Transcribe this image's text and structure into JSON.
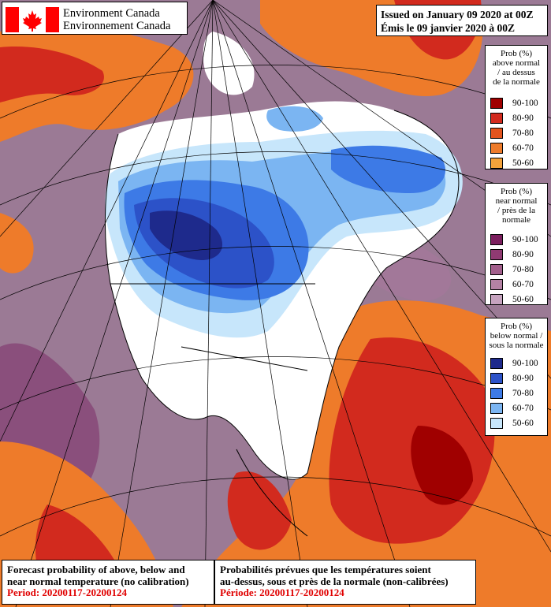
{
  "header": {
    "agency_en": "Environment Canada",
    "agency_fr": "Environnement Canada",
    "issued_en": "Issued on January 09 2020 at 00Z",
    "issued_fr": "Émis le 09 janvier 2020 à 00Z"
  },
  "legend_above": {
    "title": [
      "Prob (%)",
      "above normal",
      "/ au dessus",
      "de la normale"
    ],
    "items": [
      {
        "label": "90-100",
        "color": "#a00000"
      },
      {
        "label": "80-90",
        "color": "#d22a1e"
      },
      {
        "label": "70-80",
        "color": "#e3541e"
      },
      {
        "label": "60-70",
        "color": "#ee7b2a"
      },
      {
        "label": "50-60",
        "color": "#f4a23b"
      }
    ]
  },
  "legend_near": {
    "title": [
      "Prob (%)",
      "near normal",
      "/ près de la",
      "normale"
    ],
    "items": [
      {
        "label": "90-100",
        "color": "#7b1f5e"
      },
      {
        "label": "80-90",
        "color": "#8f3a72"
      },
      {
        "label": "70-80",
        "color": "#a25f8c"
      },
      {
        "label": "60-70",
        "color": "#b482a4"
      },
      {
        "label": "50-60",
        "color": "#c6a3bf"
      }
    ]
  },
  "legend_below": {
    "title": [
      "Prob (%)",
      "below normal /",
      "sous la normale"
    ],
    "items": [
      {
        "label": "90-100",
        "color": "#1e2a8c"
      },
      {
        "label": "80-90",
        "color": "#2c52c8"
      },
      {
        "label": "70-80",
        "color": "#3d7ae6"
      },
      {
        "label": "60-70",
        "color": "#7bb5f2"
      },
      {
        "label": "50-60",
        "color": "#c7e6fb"
      }
    ]
  },
  "footer": {
    "en_line1": "Forecast probability of above, below and",
    "en_line2": "near normal temperature (no calibration)",
    "en_period": "Period: 20200117-20200124",
    "fr_line1": "Probabilités prévues que les températures soient",
    "fr_line2": "au-dessus, sous et près de la normale (non-calibrées)",
    "fr_period": "Période: 20200117-20200124"
  },
  "map_colors": {
    "ocean_near": "#9b7a95",
    "land_white": "#ffffff",
    "lines": "#000000"
  }
}
